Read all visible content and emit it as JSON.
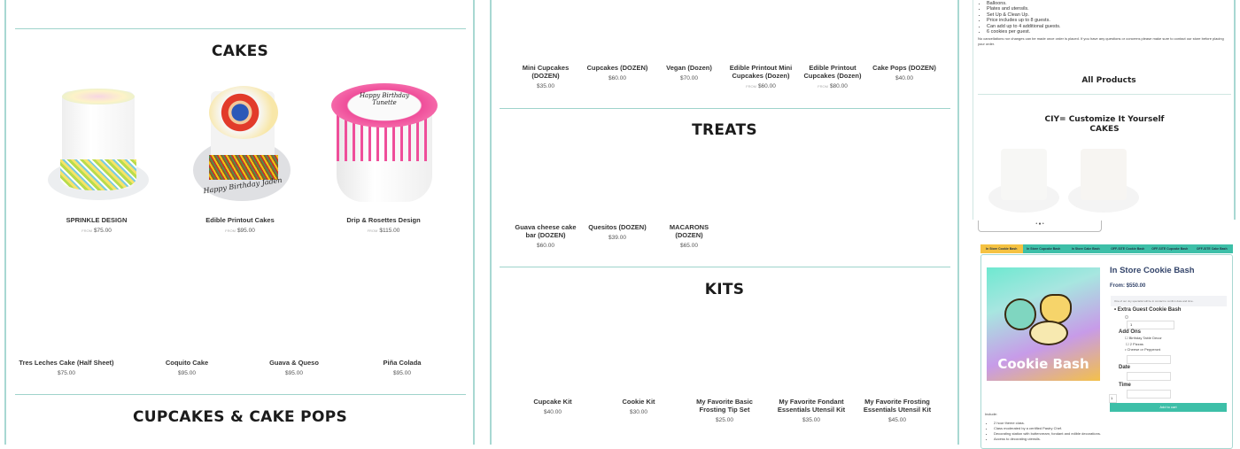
{
  "left": {
    "cakes_heading": "CAKES",
    "cakes": [
      {
        "name": "SPRINKLE DESIGN",
        "from": "FROM",
        "price": "$75.00"
      },
      {
        "name": "Edible Printout Cakes",
        "from": "FROM",
        "price": "$95.00"
      },
      {
        "name": "Drip & Rosettes Design",
        "from": "FROM",
        "price": "$115.00"
      }
    ],
    "cakes_row2": [
      {
        "name": "Tres Leches Cake (Half Sheet)",
        "price": "$75.00"
      },
      {
        "name": "Coquito Cake",
        "price": "$95.00"
      },
      {
        "name": "Guava & Queso",
        "price": "$95.00"
      },
      {
        "name": "Piña Colada",
        "price": "$95.00"
      }
    ],
    "cake_texts": {
      "edible": "Happy Birthday Jaden",
      "drip": "Happy Birthday Tunette"
    },
    "next_heading": "CUPCAKES & CAKE POPS"
  },
  "middle": {
    "cupcakes": [
      {
        "name": "Mini Cupcakes (DOZEN)",
        "from": "",
        "price": "$35.00"
      },
      {
        "name": "Cupcakes (DOZEN)",
        "from": "",
        "price": "$60.00"
      },
      {
        "name": "Vegan (Dozen)",
        "from": "",
        "price": "$70.00"
      },
      {
        "name": "Edible Printout Mini Cupcakes (Dozen)",
        "from": "FROM",
        "price": "$60.00"
      },
      {
        "name": "Edible Printout Cupcakes (Dozen)",
        "from": "FROM",
        "price": "$80.00"
      },
      {
        "name": "Cake Pops (DOZEN)",
        "from": "",
        "price": "$40.00"
      }
    ],
    "treats_heading": "TREATS",
    "treats": [
      {
        "name": "Guava cheese cake bar (DOZEN)",
        "price": "$60.00"
      },
      {
        "name": "Quesitos (DOZEN)",
        "price": "$39.00"
      },
      {
        "name": "MACARONS (DOZEN)",
        "price": "$65.00"
      }
    ],
    "kits_heading": "KITS",
    "kits": [
      {
        "name": "Cupcake Kit",
        "price": "$40.00"
      },
      {
        "name": "Cookie Kit",
        "price": "$30.00"
      },
      {
        "name": "My Favorite Basic Frosting Tip Set",
        "price": "$25.00"
      },
      {
        "name": "My Favorite Fondant Essentials Utensil Kit",
        "price": "$35.00"
      },
      {
        "name": "My Favorite Frosting Essentials Utensil Kit",
        "price": "$45.00"
      }
    ]
  },
  "right": {
    "top_list": [
      "Balloons.",
      "Plates and utensils.",
      "Set Up & Clean Up.",
      "Price includes up to 8 guests.",
      "Can add up to 4 additional guests.",
      "6 cookies per guest."
    ],
    "disclaimer": "No cancellations nor changes can be made once order is placed. If you have any questions or concerns please make sure to contact our store before placing your order.",
    "all_products": "All Products",
    "ciy_heading_1": "CIY= Customize It Yourself",
    "ciy_heading_2": "CAKES",
    "tabs": [
      "In Store Cookie Bash",
      "In Store Cupcake Bash",
      "In Store Cake Bash",
      "OFF-SITE Cookie Bash",
      "OFF-SITE Cupcake Bash",
      "OFF-SITE Cake Bash"
    ],
    "active_tab": 0,
    "product": {
      "image_text": "Cookie Bash",
      "title": "In Store Cookie Bash",
      "price": "From: $550.00",
      "notice": "One of our Joy specialist will be in contact to confirm date and time.",
      "extra_guest_label": "Extra Guest Cookie Bash",
      "extra_guest_value": "1",
      "addons_label": "Add Ons",
      "addons": [
        "Birthday Table Decor",
        "2 Pizzas",
        "Cheese or Pepperoni"
      ],
      "date_label": "Date",
      "time_label": "Time",
      "quantity": "1",
      "add_to_cart": "Add to cart",
      "include_label": "Include:",
      "include_list": [
        "2 hour theme class.",
        "Class moderated by a certified Pastry Chef.",
        "Decorating station with buttercream, fondant and edible decorations.",
        "Access to decorating utensils."
      ]
    },
    "colors": {
      "teal": "#3dbfa8",
      "tab_active": "#f5c242",
      "title": "#34456b"
    }
  }
}
